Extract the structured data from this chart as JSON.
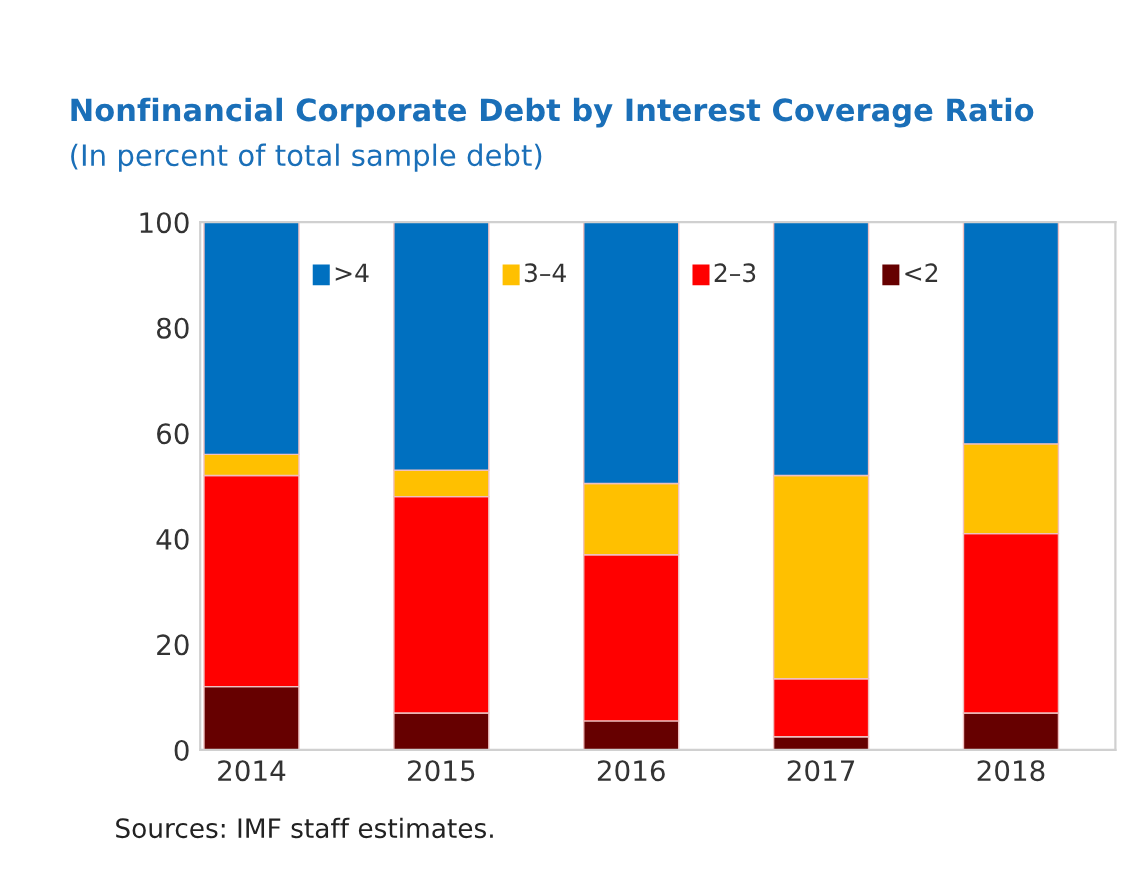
{
  "chart_data": {
    "type": "bar",
    "stacked": true,
    "title": "Nonfinancial Corporate Debt by Interest Coverage Ratio",
    "subtitle": "(In percent of total sample debt)",
    "categories": [
      "2014",
      "2015",
      "2016",
      "2017",
      "2018"
    ],
    "series": [
      {
        "name": "<2",
        "color": "#660000",
        "values": [
          12,
          7,
          5.5,
          2.5,
          7
        ]
      },
      {
        "name": "2–3",
        "color": "#ff0000",
        "values": [
          40,
          41,
          31.5,
          11,
          34
        ]
      },
      {
        "name": "3–4",
        "color": "#ffc000",
        "values": [
          4,
          5,
          13.5,
          38.5,
          17
        ]
      },
      {
        "name": ">4",
        "color": "#0070c0",
        "values": [
          44,
          47,
          49.5,
          48,
          42
        ]
      }
    ],
    "ylim": [
      0,
      100
    ],
    "yticks": [
      0,
      20,
      40,
      60,
      80,
      100
    ],
    "grid": false,
    "legend": "top",
    "annotations": [
      "Sources: IMF staff estimates."
    ]
  }
}
